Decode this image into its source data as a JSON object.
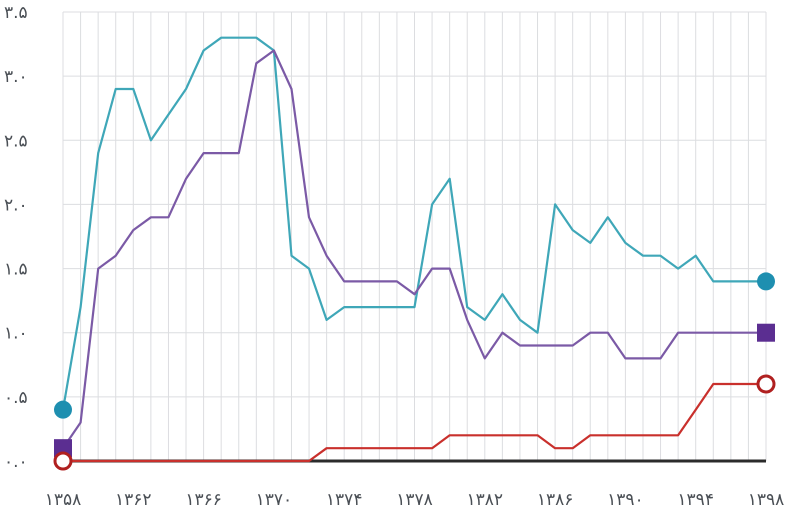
{
  "chart_data": {
    "type": "line",
    "x_start": 1358,
    "x_end": 1398,
    "ylim": [
      0,
      3.5
    ],
    "grid": true,
    "legend": "none",
    "x_tick_labels": [
      {
        "x": 1358,
        "label": "۱۳۵۸"
      },
      {
        "x": 1362,
        "label": "۱۳۶۲"
      },
      {
        "x": 1366,
        "label": "۱۳۶۶"
      },
      {
        "x": 1370,
        "label": "۱۳۷۰"
      },
      {
        "x": 1374,
        "label": "۱۳۷۴"
      },
      {
        "x": 1378,
        "label": "۱۳۷۸"
      },
      {
        "x": 1382,
        "label": "۱۳۸۲"
      },
      {
        "x": 1386,
        "label": "۱۳۸۶"
      },
      {
        "x": 1390,
        "label": "۱۳۹۰"
      },
      {
        "x": 1394,
        "label": "۱۳۹۴"
      },
      {
        "x": 1398,
        "label": "۱۳۹۸"
      }
    ],
    "y_tick_labels": [
      {
        "y": 0,
        "label": "۰.۰"
      },
      {
        "y": 0.5,
        "label": "۰.۵"
      },
      {
        "y": 1.0,
        "label": "۱.۰"
      },
      {
        "y": 1.5,
        "label": "۱.۵"
      },
      {
        "y": 2.0,
        "label": "۲.۰"
      },
      {
        "y": 2.5,
        "label": "۲.۵"
      },
      {
        "y": 3.0,
        "label": "۳.۰"
      },
      {
        "y": 3.5,
        "label": "۳.۵"
      }
    ],
    "series": [
      {
        "color": "#3fa7b8",
        "marker": "filled-circle",
        "marker_color": "#1e8fb0",
        "points": [
          [
            1358,
            0.4
          ],
          [
            1359,
            1.2
          ],
          [
            1360,
            2.4
          ],
          [
            1361,
            2.9
          ],
          [
            1362,
            2.9
          ],
          [
            1363,
            2.5
          ],
          [
            1364,
            2.7
          ],
          [
            1365,
            2.9
          ],
          [
            1366,
            3.2
          ],
          [
            1367,
            3.3
          ],
          [
            1368,
            3.3
          ],
          [
            1369,
            3.3
          ],
          [
            1370,
            3.2
          ],
          [
            1371,
            1.6
          ],
          [
            1372,
            1.5
          ],
          [
            1373,
            1.1
          ],
          [
            1374,
            1.2
          ],
          [
            1375,
            1.2
          ],
          [
            1376,
            1.2
          ],
          [
            1377,
            1.2
          ],
          [
            1378,
            1.2
          ],
          [
            1379,
            2.0
          ],
          [
            1380,
            2.2
          ],
          [
            1381,
            1.2
          ],
          [
            1382,
            1.1
          ],
          [
            1383,
            1.3
          ],
          [
            1384,
            1.1
          ],
          [
            1385,
            1.0
          ],
          [
            1386,
            2.0
          ],
          [
            1387,
            1.8
          ],
          [
            1388,
            1.7
          ],
          [
            1389,
            1.9
          ],
          [
            1390,
            1.7
          ],
          [
            1391,
            1.6
          ],
          [
            1392,
            1.6
          ],
          [
            1393,
            1.5
          ],
          [
            1394,
            1.6
          ],
          [
            1395,
            1.4
          ],
          [
            1396,
            1.4
          ],
          [
            1397,
            1.4
          ],
          [
            1398,
            1.4
          ]
        ]
      },
      {
        "color": "#7b5aa6",
        "marker": "filled-square",
        "marker_color": "#5b2e91",
        "points": [
          [
            1358,
            0.1
          ],
          [
            1359,
            0.3
          ],
          [
            1360,
            1.5
          ],
          [
            1361,
            1.6
          ],
          [
            1362,
            1.8
          ],
          [
            1363,
            1.9
          ],
          [
            1364,
            1.9
          ],
          [
            1365,
            2.2
          ],
          [
            1366,
            2.4
          ],
          [
            1367,
            2.4
          ],
          [
            1368,
            2.4
          ],
          [
            1369,
            3.1
          ],
          [
            1370,
            3.2
          ],
          [
            1371,
            2.9
          ],
          [
            1372,
            1.9
          ],
          [
            1373,
            1.6
          ],
          [
            1374,
            1.4
          ],
          [
            1375,
            1.4
          ],
          [
            1376,
            1.4
          ],
          [
            1377,
            1.4
          ],
          [
            1378,
            1.3
          ],
          [
            1379,
            1.5
          ],
          [
            1380,
            1.5
          ],
          [
            1381,
            1.1
          ],
          [
            1382,
            0.8
          ],
          [
            1383,
            1.0
          ],
          [
            1384,
            0.9
          ],
          [
            1385,
            0.9
          ],
          [
            1386,
            0.9
          ],
          [
            1387,
            0.9
          ],
          [
            1388,
            1.0
          ],
          [
            1389,
            1.0
          ],
          [
            1390,
            0.8
          ],
          [
            1391,
            0.8
          ],
          [
            1392,
            0.8
          ],
          [
            1393,
            1.0
          ],
          [
            1394,
            1.0
          ],
          [
            1395,
            1.0
          ],
          [
            1396,
            1.0
          ],
          [
            1397,
            1.0
          ],
          [
            1398,
            1.0
          ]
        ]
      },
      {
        "color": "#c9302c",
        "marker": "hollow-circle",
        "marker_color": "#b02020",
        "points": [
          [
            1358,
            0.0
          ],
          [
            1372,
            0.0
          ],
          [
            1373,
            0.1
          ],
          [
            1374,
            0.1
          ],
          [
            1375,
            0.1
          ],
          [
            1376,
            0.1
          ],
          [
            1377,
            0.1
          ],
          [
            1378,
            0.1
          ],
          [
            1379,
            0.1
          ],
          [
            1380,
            0.2
          ],
          [
            1381,
            0.2
          ],
          [
            1382,
            0.2
          ],
          [
            1383,
            0.2
          ],
          [
            1384,
            0.2
          ],
          [
            1385,
            0.2
          ],
          [
            1386,
            0.1
          ],
          [
            1387,
            0.1
          ],
          [
            1388,
            0.2
          ],
          [
            1389,
            0.2
          ],
          [
            1390,
            0.2
          ],
          [
            1391,
            0.2
          ],
          [
            1392,
            0.2
          ],
          [
            1393,
            0.2
          ],
          [
            1394,
            0.4
          ],
          [
            1395,
            0.6
          ],
          [
            1396,
            0.6
          ],
          [
            1397,
            0.6
          ],
          [
            1398,
            0.6
          ]
        ]
      }
    ]
  }
}
